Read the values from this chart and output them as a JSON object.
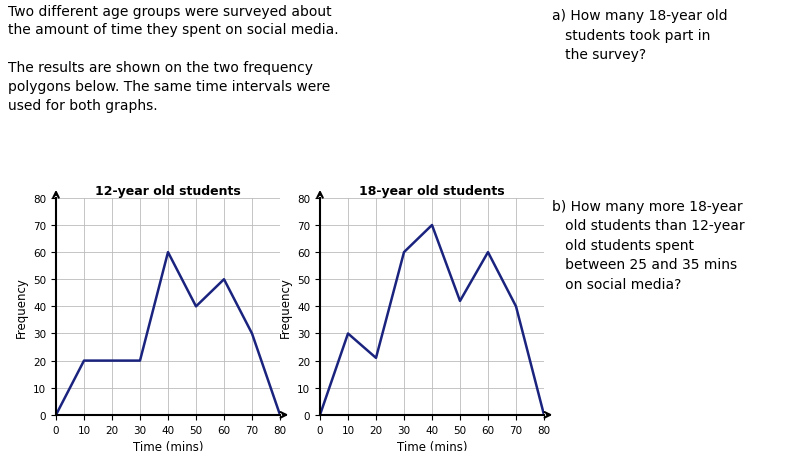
{
  "graph1_title": "12-year old students",
  "graph2_title": "18-year old students",
  "x_label": "Time (mins)",
  "y_label": "Frequency",
  "x_values": [
    0,
    10,
    20,
    30,
    40,
    50,
    60,
    70,
    80
  ],
  "graph1_y": [
    0,
    20,
    20,
    20,
    60,
    40,
    50,
    30,
    0
  ],
  "graph2_y": [
    0,
    30,
    21,
    60,
    70,
    42,
    60,
    40,
    0
  ],
  "ylim": [
    0,
    80
  ],
  "xlim": [
    0,
    80
  ],
  "yticks": [
    0,
    10,
    20,
    30,
    40,
    50,
    60,
    70,
    80
  ],
  "xticks": [
    0,
    10,
    20,
    30,
    40,
    50,
    60,
    70,
    80
  ],
  "line_color": "#1a237e",
  "line_width": 1.8,
  "grid_color": "#bbbbbb",
  "text_line1": "Two different age groups were surveyed about",
  "text_line2": "the amount of time they spent on social media.",
  "text_line3": "The results are shown on the two frequency",
  "text_line4": "polygons below. The same time intervals were",
  "text_line5": "used for both graphs.",
  "qa_text_a": "a) How many 18-year old\n   students took part in\n   the survey?",
  "qa_text_b": "b) How many more 18-year\n   old students than 12-year\n   old students spent\n   between 25 and 35 mins\n   on social media?"
}
